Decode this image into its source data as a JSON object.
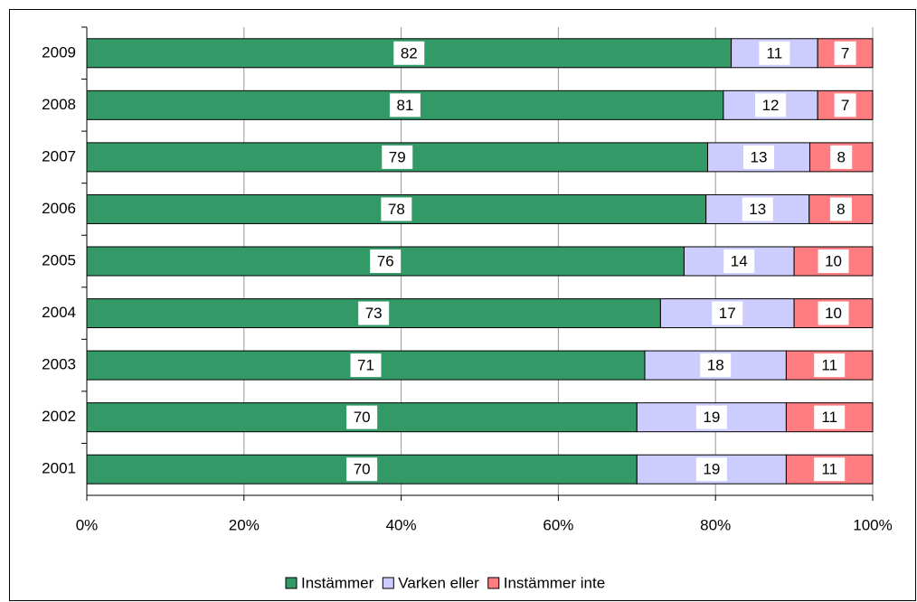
{
  "chart_data": {
    "type": "stacked_bar_100",
    "categories": [
      "2009",
      "2008",
      "2007",
      "2006",
      "2005",
      "2004",
      "2003",
      "2002",
      "2001"
    ],
    "series": [
      {
        "name": "Instämmer",
        "color": "#339966",
        "values": [
          82,
          81,
          79,
          78,
          76,
          73,
          71,
          70,
          70
        ]
      },
      {
        "name": "Varken eller",
        "color": "#ccccff",
        "values": [
          11,
          12,
          13,
          13,
          14,
          17,
          18,
          19,
          19
        ]
      },
      {
        "name": "Instämmer inte",
        "color": "#ff7c80",
        "values": [
          7,
          7,
          8,
          8,
          10,
          10,
          11,
          11,
          11
        ]
      }
    ],
    "xlim": [
      0,
      100
    ],
    "xticks": [
      {
        "value": 0,
        "label": "0%"
      },
      {
        "value": 20,
        "label": "20%"
      },
      {
        "value": 40,
        "label": "40%"
      },
      {
        "value": 60,
        "label": "60%"
      },
      {
        "value": 80,
        "label": "80%"
      },
      {
        "value": 100,
        "label": "100%"
      }
    ],
    "grid": true,
    "legend": "bottom"
  }
}
